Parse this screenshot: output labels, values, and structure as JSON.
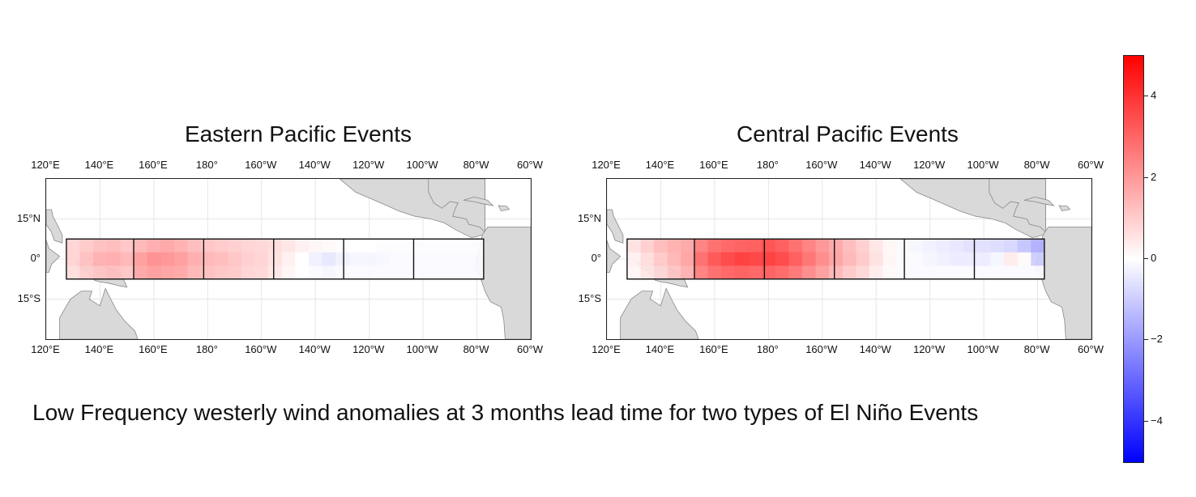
{
  "caption": "Low Frequency westerly wind anomalies at 3 months lead time for two types of El Niño Events",
  "colorbar": {
    "colormap": "bwr",
    "vmin": -5,
    "vmax": 5,
    "ticks": [
      "4",
      "2",
      "0",
      "−2",
      "−4"
    ],
    "tick_values": [
      4,
      2,
      0,
      -2,
      -4
    ],
    "low_color": "#0000ff",
    "mid_color": "#ffffff",
    "high_color": "#ff0000"
  },
  "chart_data": [
    {
      "type": "heatmap",
      "title": "Eastern Pacific Events",
      "x_ticks": [
        "120°E",
        "140°E",
        "160°E",
        "180°",
        "160°W",
        "140°W",
        "120°W",
        "100°W",
        "80°W",
        "60°W"
      ],
      "x_tick_lon": [
        120,
        140,
        160,
        180,
        200,
        220,
        240,
        260,
        280,
        300
      ],
      "y_ticks": [
        "15°N",
        "0°",
        "15°S"
      ],
      "y_tick_lat": [
        15,
        0,
        -15
      ],
      "xlim": [
        120,
        300
      ],
      "ylim": [
        -30,
        30
      ],
      "grid": true,
      "region_box": {
        "lon": [
          127.5,
          282.5
        ],
        "lat": [
          -7.5,
          7.5
        ]
      },
      "box_dividers_lon": [
        152.5,
        178.5,
        204.5,
        230.5,
        256.5
      ],
      "cells": {
        "lon_start": 127.5,
        "lon_step": 5,
        "lat_start": 7.5,
        "lat_step": -5,
        "values": [
          [
            0.9,
            1.1,
            1.3,
            1.4,
            1.2,
            1.5,
            1.7,
            1.8,
            1.6,
            1.4,
            1.2,
            1.1,
            1.0,
            0.9,
            0.8,
            0.7,
            0.5,
            0.3,
            0.2,
            0.1,
            0.05,
            0.0,
            0.0,
            -0.05,
            -0.05,
            -0.05,
            -0.05,
            -0.05,
            -0.05,
            -0.05,
            -0.05
          ],
          [
            0.9,
            1.3,
            1.6,
            1.7,
            1.5,
            2.0,
            2.3,
            2.2,
            2.0,
            1.7,
            1.5,
            1.4,
            1.2,
            1.0,
            0.9,
            0.6,
            0.3,
            0.0,
            -0.3,
            -0.5,
            -0.3,
            -0.2,
            -0.2,
            -0.15,
            -0.1,
            -0.1,
            -0.1,
            -0.1,
            -0.1,
            -0.1,
            -0.1
          ],
          [
            0.7,
            1.0,
            1.2,
            1.3,
            1.2,
            1.8,
            2.0,
            1.9,
            1.8,
            1.5,
            1.3,
            1.2,
            1.1,
            0.9,
            0.8,
            0.5,
            0.2,
            0.0,
            -0.1,
            -0.2,
            -0.1,
            -0.1,
            -0.1,
            -0.1,
            -0.1,
            -0.1,
            -0.1,
            -0.1,
            -0.1,
            -0.1,
            -0.1
          ]
        ]
      }
    },
    {
      "type": "heatmap",
      "title": "Central Pacific Events",
      "x_ticks": [
        "120°E",
        "140°E",
        "160°E",
        "180°",
        "160°W",
        "140°W",
        "120°W",
        "100°W",
        "80°W",
        "60°W"
      ],
      "x_tick_lon": [
        120,
        140,
        160,
        180,
        200,
        220,
        240,
        260,
        280,
        300
      ],
      "y_ticks": [
        "15°N",
        "0°",
        "15°S"
      ],
      "y_tick_lat": [
        15,
        0,
        -15
      ],
      "xlim": [
        120,
        300
      ],
      "ylim": [
        -30,
        30
      ],
      "grid": true,
      "region_box": {
        "lon": [
          127.5,
          282.5
        ],
        "lat": [
          -7.5,
          7.5
        ]
      },
      "box_dividers_lon": [
        152.5,
        178.5,
        204.5,
        230.5,
        256.5
      ],
      "cells": {
        "lon_start": 127.5,
        "lon_step": 5,
        "lat_start": 7.5,
        "lat_step": -5,
        "values": [
          [
            0.6,
            1.0,
            1.4,
            1.6,
            1.8,
            2.6,
            3.0,
            3.2,
            3.3,
            3.4,
            3.6,
            3.4,
            3.0,
            2.6,
            2.2,
            1.8,
            1.4,
            1.0,
            0.5,
            0.2,
            -0.1,
            -0.2,
            -0.3,
            -0.4,
            -0.5,
            -0.6,
            -0.6,
            -0.7,
            -0.8,
            -1.2,
            -1.6
          ],
          [
            0.3,
            0.7,
            1.1,
            1.5,
            1.9,
            3.0,
            3.5,
            3.8,
            4.0,
            3.9,
            4.0,
            3.8,
            3.4,
            2.9,
            2.4,
            1.9,
            1.5,
            1.1,
            0.6,
            0.2,
            -0.1,
            -0.1,
            -0.2,
            -0.3,
            -0.4,
            -0.4,
            -0.4,
            -0.2,
            0.4,
            0.1,
            -1.0
          ],
          [
            0.2,
            0.5,
            0.8,
            1.2,
            1.6,
            2.6,
            3.0,
            3.2,
            3.3,
            3.2,
            3.3,
            3.1,
            2.8,
            2.4,
            2.0,
            1.5,
            1.1,
            0.8,
            0.4,
            0.1,
            -0.1,
            -0.1,
            -0.1,
            -0.1,
            -0.1,
            -0.1,
            -0.1,
            -0.1,
            -0.1,
            -0.1,
            -0.1
          ]
        ]
      }
    }
  ]
}
